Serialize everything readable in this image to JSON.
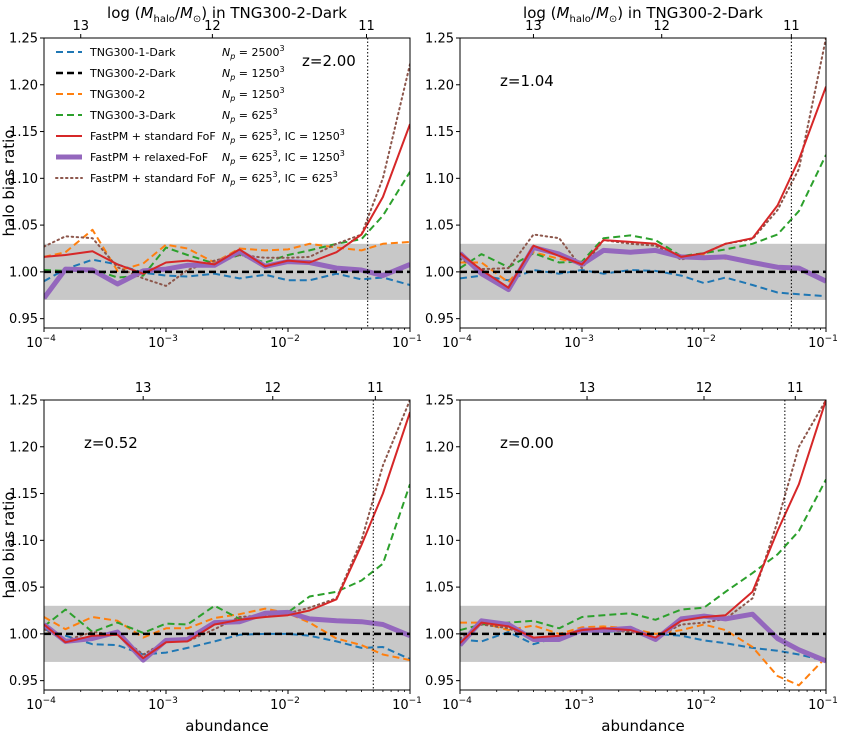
{
  "figure": {
    "top_axis_label": "log (M_halo/M_⊙) in TNG300-2-Dark",
    "top_axis_label_parts": {
      "prefix": "log (",
      "m": "M",
      "halo": "halo",
      "slash": "/",
      "sun": "⊙",
      "suffix": ") in TNG300-2-Dark"
    },
    "xlabel": "abundance",
    "ylabel": "halo bias ratio",
    "x_ticks": [
      {
        "value": 0.0001,
        "base": "10",
        "exp": "−4"
      },
      {
        "value": 0.001,
        "base": "10",
        "exp": "−3"
      },
      {
        "value": 0.01,
        "base": "10",
        "exp": "−2"
      },
      {
        "value": 0.1,
        "base": "10",
        "exp": "−1"
      }
    ],
    "y_ticks": [
      "0.95",
      "1.00",
      "1.05",
      "1.10",
      "1.15",
      "1.20",
      "1.25"
    ],
    "top_ticks": [
      "13",
      "12",
      "11"
    ]
  },
  "legend": [
    {
      "label": "TNG300-1-Dark",
      "np": "N_p = 2500³",
      "np_val": "2500"
    },
    {
      "label": "TNG300-2-Dark",
      "np": "N_p = 1250³",
      "np_val": "1250"
    },
    {
      "label": "TNG300-2",
      "np": "N_p = 1250³",
      "np_val": "1250"
    },
    {
      "label": "TNG300-3-Dark",
      "np": "N_p = 625³",
      "np_val": "625"
    },
    {
      "label": "FastPM + standard FoF",
      "np": "N_p = 625³, IC = 1250³",
      "np_val": "625",
      "ic_val": "1250"
    },
    {
      "label": "FastPM + relaxed-FoF",
      "np": "N_p = 625³, IC = 1250³",
      "np_val": "625",
      "ic_val": "1250"
    },
    {
      "label": "FastPM + standard FoF",
      "np": "N_p = 625³, IC = 625³",
      "np_val": "625",
      "ic_val": "625"
    }
  ],
  "colors": {
    "tng1": "#1f77b4",
    "tng2": "#000000",
    "tng2hydro": "#ff7f0e",
    "tng3": "#2ca02c",
    "fof": "#d62728",
    "relaxed": "#9467bd",
    "fof625": "#8c564b",
    "band": "#c8c8c8"
  },
  "chart_data": [
    {
      "type": "line",
      "panel": "top-left",
      "title": "z=2.00",
      "xscale": "log",
      "xlim": [
        0.0001,
        0.1
      ],
      "ylim": [
        0.94,
        1.25
      ],
      "band": [
        0.97,
        1.03
      ],
      "vline": 0.045,
      "top_tick_positions": [
        0.0002,
        0.0024,
        0.044
      ],
      "x": [
        0.0001,
        0.00015,
        0.00025,
        0.0004,
        0.00065,
        0.001,
        0.0015,
        0.0025,
        0.004,
        0.0065,
        0.01,
        0.015,
        0.025,
        0.04,
        0.06,
        0.1
      ],
      "series": [
        {
          "key": "tng1",
          "name": "TNG300-1-Dark",
          "values": [
            0.99,
            1.003,
            1.013,
            1.008,
            0.999,
            0.996,
            0.995,
            0.998,
            0.993,
            0.997,
            0.991,
            0.991,
            0.998,
            0.992,
            0.994,
            0.986
          ]
        },
        {
          "key": "tng2",
          "name": "TNG300-2-Dark",
          "values": [
            1.0,
            1.0,
            1.0,
            1.0,
            1.0,
            1.0,
            1.0,
            1.0,
            1.0,
            1.0,
            1.0,
            1.0,
            1.0,
            1.0,
            1.0,
            1.0
          ]
        },
        {
          "key": "tng2hydro",
          "name": "TNG300-2",
          "values": [
            1.016,
            1.021,
            1.045,
            1.001,
            1.009,
            1.029,
            1.025,
            1.01,
            1.025,
            1.023,
            1.024,
            1.03,
            1.026,
            1.023,
            1.03,
            1.032
          ]
        },
        {
          "key": "tng3",
          "name": "TNG300-3-Dark",
          "values": [
            1.002,
            1.001,
            1.003,
            0.994,
            0.996,
            1.026,
            1.018,
            1.009,
            1.018,
            1.01,
            1.018,
            1.023,
            1.03,
            1.035,
            1.06,
            1.107
          ]
        },
        {
          "key": "fof",
          "name": "FastPM + standard FoF",
          "values": [
            1.016,
            1.018,
            1.022,
            1.008,
            0.998,
            1.01,
            1.012,
            1.008,
            1.024,
            1.006,
            1.012,
            1.01,
            1.021,
            1.04,
            1.08,
            1.158
          ]
        },
        {
          "key": "relaxed",
          "name": "FastPM + relaxed-FoF",
          "values": [
            0.972,
            1.003,
            1.002,
            0.987,
            1.001,
            1.003,
            1.007,
            1.007,
            1.022,
            1.006,
            1.011,
            1.01,
            1.004,
            1.002,
            0.996,
            1.008
          ]
        },
        {
          "key": "fof625",
          "name": "FastPM + standard FoF (IC 625³)",
          "values": [
            1.027,
            1.038,
            1.036,
            1.005,
            0.993,
            0.985,
            1.002,
            1.012,
            1.018,
            1.015,
            1.015,
            1.016,
            1.03,
            1.04,
            1.1,
            1.222
          ]
        }
      ]
    },
    {
      "type": "line",
      "panel": "top-right",
      "title": "z=1.04",
      "xscale": "log",
      "xlim": [
        0.0001,
        0.1
      ],
      "ylim": [
        0.94,
        1.25
      ],
      "band": [
        0.97,
        1.03
      ],
      "vline": 0.052,
      "top_tick_positions": [
        0.0004,
        0.0045,
        0.052
      ],
      "x": [
        0.0001,
        0.00015,
        0.00025,
        0.0004,
        0.00065,
        0.001,
        0.0015,
        0.0025,
        0.004,
        0.0065,
        0.01,
        0.015,
        0.025,
        0.04,
        0.06,
        0.1
      ],
      "series": [
        {
          "key": "tng1",
          "name": "TNG300-1-Dark",
          "values": [
            0.993,
            0.996,
            0.991,
            1.002,
            0.998,
            1.002,
            0.998,
            1.002,
            1.001,
            0.996,
            0.988,
            0.994,
            0.986,
            0.978,
            0.976,
            0.974
          ]
        },
        {
          "key": "tng2",
          "name": "TNG300-2-Dark",
          "values": [
            1.0,
            1.0,
            1.0,
            1.0,
            1.0,
            1.0,
            1.0,
            1.0,
            1.0,
            1.0,
            1.0,
            1.0,
            1.0,
            1.0,
            1.0,
            1.0
          ]
        },
        {
          "key": "tng2hydro",
          "name": "TNG300-2",
          "values": [
            1.01,
            1.01,
            0.989,
            1.021,
            1.014,
            1.008,
            1.022,
            1.021,
            1.022,
            1.016,
            1.018,
            1.014,
            1.011,
            1.005,
            1.003,
            0.99
          ]
        },
        {
          "key": "tng3",
          "name": "TNG300-3-Dark",
          "values": [
            1.004,
            1.019,
            1.005,
            1.02,
            1.01,
            1.011,
            1.036,
            1.039,
            1.034,
            1.017,
            1.02,
            1.024,
            1.03,
            1.04,
            1.065,
            1.125
          ]
        },
        {
          "key": "fof",
          "name": "FastPM + standard FoF",
          "values": [
            1.02,
            1.002,
            0.983,
            1.028,
            1.017,
            1.008,
            1.034,
            1.032,
            1.03,
            1.016,
            1.02,
            1.03,
            1.036,
            1.071,
            1.12,
            1.198
          ]
        },
        {
          "key": "relaxed",
          "name": "FastPM + relaxed-FoF",
          "values": [
            1.02,
            0.998,
            0.981,
            1.026,
            1.019,
            1.008,
            1.023,
            1.021,
            1.023,
            1.016,
            1.015,
            1.016,
            1.01,
            1.005,
            1.004,
            0.99
          ]
        },
        {
          "key": "fof625",
          "name": "FastPM + standard FoF (IC 625³)",
          "values": [
            1.014,
            1.003,
            1.004,
            1.04,
            1.036,
            1.004,
            1.034,
            1.03,
            1.028,
            1.013,
            1.02,
            1.03,
            1.035,
            1.066,
            1.11,
            1.25
          ]
        }
      ]
    },
    {
      "type": "line",
      "panel": "bottom-left",
      "title": "z=0.52",
      "xscale": "log",
      "xlim": [
        0.0001,
        0.1
      ],
      "ylim": [
        0.94,
        1.25
      ],
      "band": [
        0.97,
        1.03
      ],
      "vline": 0.05,
      "top_tick_positions": [
        0.00065,
        0.0075,
        0.052
      ],
      "x": [
        0.0001,
        0.00015,
        0.00025,
        0.0004,
        0.00065,
        0.001,
        0.0015,
        0.0025,
        0.004,
        0.0065,
        0.01,
        0.015,
        0.025,
        0.04,
        0.06,
        0.1
      ],
      "series": [
        {
          "key": "tng1",
          "name": "TNG300-1-Dark",
          "values": [
            1.005,
            0.998,
            0.989,
            0.988,
            0.978,
            0.98,
            0.985,
            0.992,
            0.999,
            1.0,
            1.0,
            0.998,
            0.992,
            0.985,
            0.986,
            0.973
          ]
        },
        {
          "key": "tng2",
          "name": "TNG300-2-Dark",
          "values": [
            1.0,
            1.0,
            1.0,
            1.0,
            1.0,
            1.0,
            1.0,
            1.0,
            1.0,
            1.0,
            1.0,
            1.0,
            1.0,
            1.0,
            1.0,
            1.0
          ]
        },
        {
          "key": "tng2hydro",
          "name": "TNG300-2",
          "values": [
            1.018,
            1.005,
            1.018,
            1.014,
            0.996,
            1.006,
            1.006,
            1.017,
            1.021,
            1.027,
            1.022,
            1.012,
            0.995,
            0.988,
            0.978,
            0.972
          ]
        },
        {
          "key": "tng3",
          "name": "TNG300-3-Dark",
          "values": [
            1.008,
            1.026,
            1.002,
            1.012,
            1.001,
            1.011,
            1.01,
            1.03,
            1.016,
            1.019,
            1.023,
            1.04,
            1.045,
            1.057,
            1.075,
            1.16
          ]
        },
        {
          "key": "fof",
          "name": "FastPM + standard FoF",
          "values": [
            1.01,
            0.991,
            0.998,
            0.999,
            0.974,
            0.991,
            0.992,
            1.01,
            1.015,
            1.018,
            1.02,
            1.025,
            1.037,
            1.095,
            1.15,
            1.237
          ]
        },
        {
          "key": "relaxed",
          "name": "FastPM + relaxed-FoF",
          "values": [
            1.01,
            0.992,
            0.995,
            1.002,
            0.972,
            0.993,
            0.994,
            1.012,
            1.013,
            1.022,
            1.023,
            1.016,
            1.014,
            1.013,
            1.01,
            0.998
          ]
        },
        {
          "key": "fof625",
          "name": "FastPM + standard FoF (IC 625³)",
          "values": [
            1.005,
            0.993,
            1.002,
            0.999,
            0.978,
            0.992,
            0.992,
            1.005,
            1.018,
            1.02,
            1.022,
            1.028,
            1.038,
            1.1,
            1.18,
            1.25
          ]
        }
      ]
    },
    {
      "type": "line",
      "panel": "bottom-right",
      "title": "z=0.00",
      "xscale": "log",
      "xlim": [
        0.0001,
        0.1
      ],
      "ylim": [
        0.94,
        1.25
      ],
      "band": [
        0.97,
        1.03
      ],
      "vline": 0.046,
      "top_tick_positions": [
        0.0011,
        0.01,
        0.056
      ],
      "x": [
        0.0001,
        0.00015,
        0.00025,
        0.0004,
        0.00065,
        0.001,
        0.0015,
        0.0025,
        0.004,
        0.0065,
        0.01,
        0.015,
        0.025,
        0.04,
        0.06,
        0.1
      ],
      "series": [
        {
          "key": "tng1",
          "name": "TNG300-1-Dark",
          "values": [
            0.994,
            0.992,
            1.002,
            0.989,
            0.997,
            1.004,
            1.002,
            1.004,
            1.0,
            0.998,
            0.993,
            0.99,
            0.985,
            0.982,
            0.978,
            0.971
          ]
        },
        {
          "key": "tng2",
          "name": "TNG300-2-Dark",
          "values": [
            1.0,
            1.0,
            1.0,
            1.0,
            1.0,
            1.0,
            1.0,
            1.0,
            1.0,
            1.0,
            1.0,
            1.0,
            1.0,
            1.0,
            1.0,
            1.0
          ]
        },
        {
          "key": "tng2hydro",
          "name": "TNG300-2",
          "values": [
            1.012,
            1.012,
            1.004,
            1.009,
            1.0,
            1.007,
            1.008,
            1.006,
            1.0,
            1.004,
            1.01,
            1.004,
            0.986,
            0.955,
            0.945,
            0.975
          ]
        },
        {
          "key": "tng3",
          "name": "TNG300-3-Dark",
          "values": [
            1.004,
            1.01,
            1.012,
            1.014,
            1.006,
            1.018,
            1.02,
            1.022,
            1.015,
            1.026,
            1.028,
            1.045,
            1.065,
            1.085,
            1.11,
            1.165
          ]
        },
        {
          "key": "fof",
          "name": "FastPM + standard FoF",
          "values": [
            0.99,
            1.012,
            1.008,
            0.996,
            0.998,
            1.004,
            1.006,
            1.004,
            0.996,
            1.014,
            1.018,
            1.02,
            1.045,
            1.11,
            1.16,
            1.25
          ]
        },
        {
          "key": "relaxed",
          "name": "FastPM + relaxed-FoF",
          "values": [
            0.988,
            1.014,
            1.01,
            0.994,
            0.994,
            1.004,
            1.004,
            1.006,
            0.994,
            1.016,
            1.019,
            1.016,
            1.021,
            0.995,
            0.983,
            0.971
          ]
        },
        {
          "key": "fof625",
          "name": "FastPM + standard FoF (IC 625³)",
          "values": [
            0.995,
            1.01,
            1.006,
            0.994,
            0.996,
            1.003,
            1.004,
            1.002,
            0.996,
            1.01,
            1.012,
            1.016,
            1.038,
            1.12,
            1.2,
            1.25
          ]
        }
      ]
    }
  ]
}
